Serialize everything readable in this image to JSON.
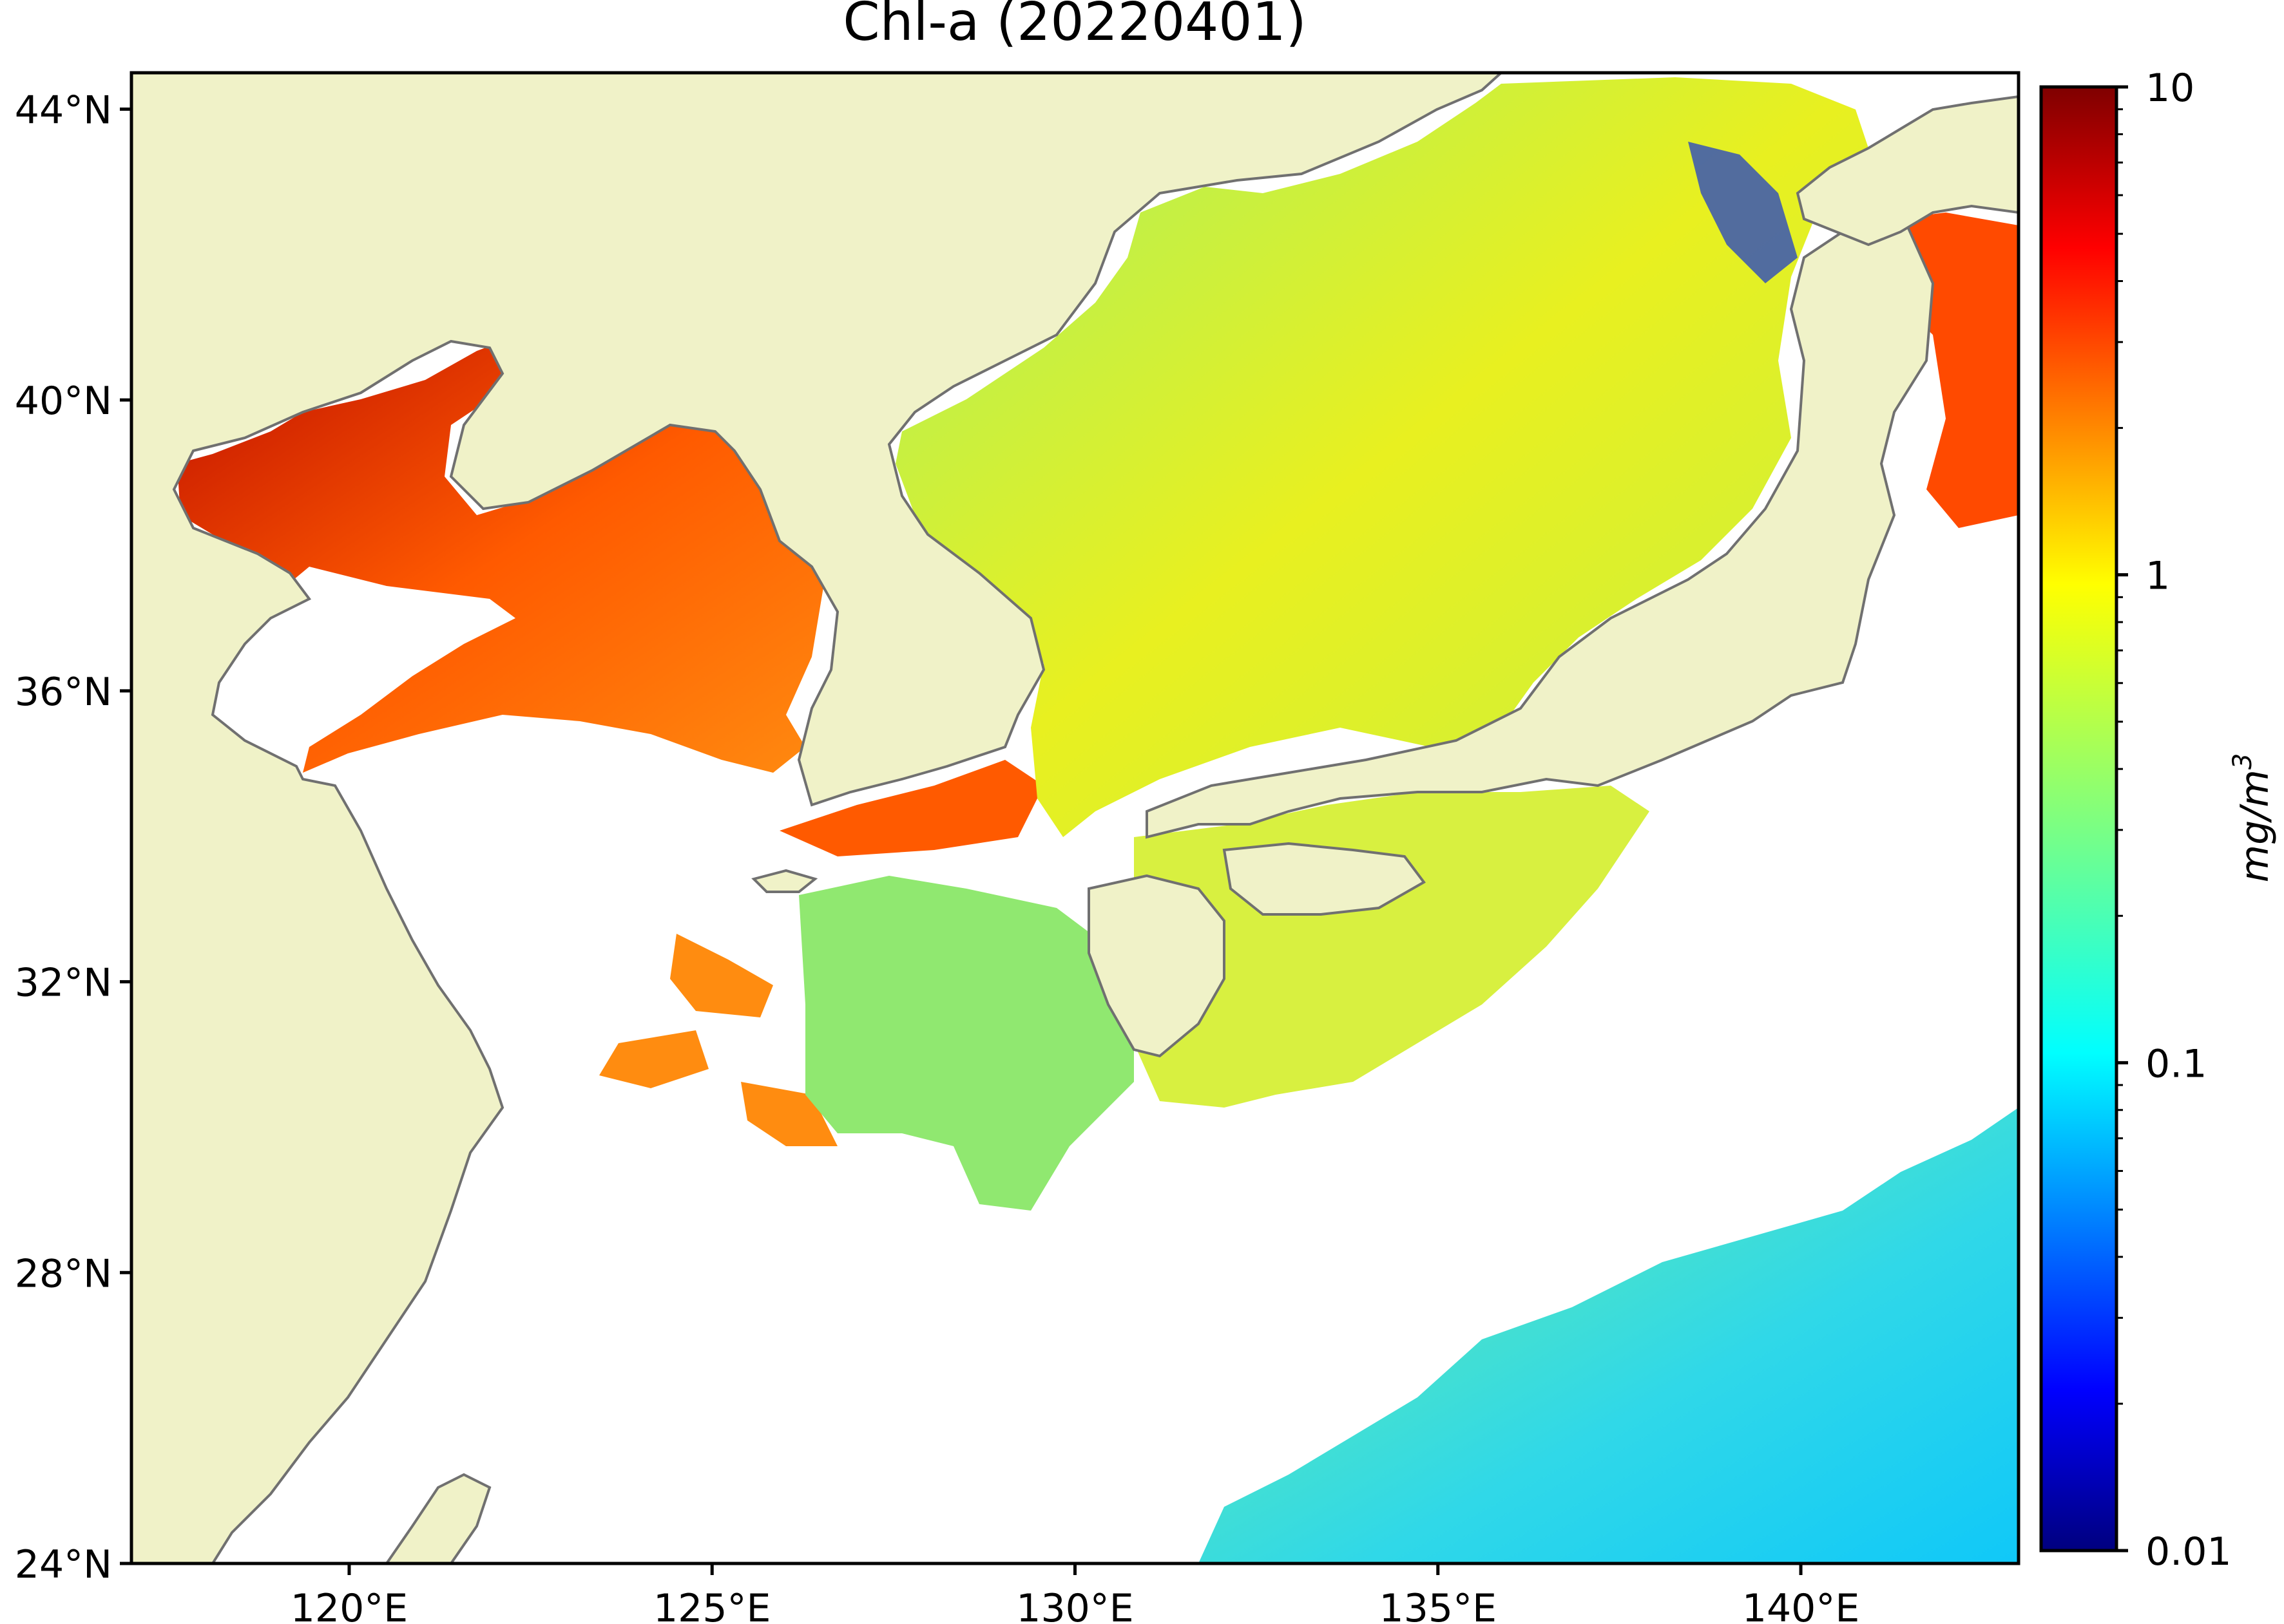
{
  "title": "Chl-a (20220401)",
  "map": {
    "lon_range": [
      117,
      143
    ],
    "lat_range": [
      24,
      44.5
    ],
    "lat_ticks": [
      {
        "value": 44,
        "label": "44°N"
      },
      {
        "value": 40,
        "label": "40°N"
      },
      {
        "value": 36,
        "label": "36°N"
      },
      {
        "value": 32,
        "label": "32°N"
      },
      {
        "value": 28,
        "label": "28°N"
      },
      {
        "value": 24,
        "label": "24°N"
      }
    ],
    "lon_ticks": [
      {
        "value": 120,
        "label": "120°E"
      },
      {
        "value": 125,
        "label": "125°E"
      },
      {
        "value": 130,
        "label": "130°E"
      },
      {
        "value": 135,
        "label": "135°E"
      },
      {
        "value": 140,
        "label": "140°E"
      }
    ],
    "land_color": "#f0f2c8",
    "coast_color": "#707070",
    "no_data_color": "#ffffff"
  },
  "colorbar": {
    "label": "mg/m3",
    "label_main": "mg/m",
    "label_sup": "3",
    "scale": "log",
    "range": [
      0.01,
      10
    ],
    "ticks": [
      {
        "value": 10,
        "label": "10"
      },
      {
        "value": 1,
        "label": "1"
      },
      {
        "value": 0.1,
        "label": "0.1"
      },
      {
        "value": 0.01,
        "label": "0.01"
      }
    ],
    "colormap": "jet",
    "colors": [
      "#00007f",
      "#0000ff",
      "#007fff",
      "#00ffff",
      "#7fff7f",
      "#ffff00",
      "#ff7f00",
      "#ff0000",
      "#7f0000"
    ]
  }
}
